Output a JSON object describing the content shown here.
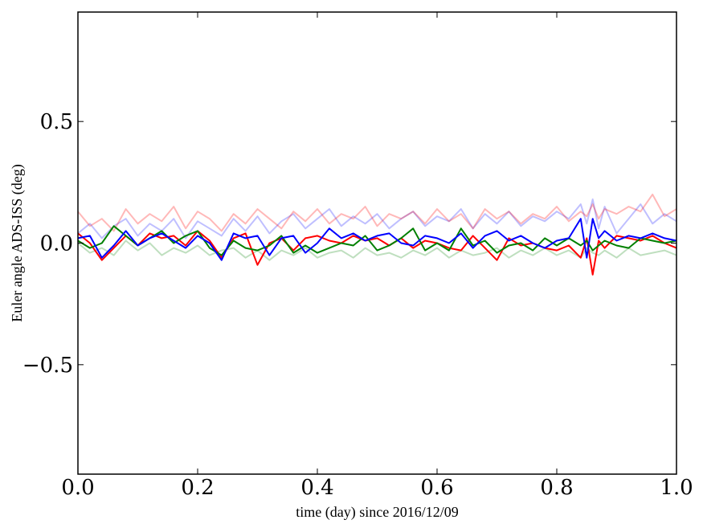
{
  "chart_data": {
    "type": "line",
    "title": "",
    "xlabel": "time (day) since 2016/12/09",
    "ylabel": "Euler angle ADS-ISS (deg)",
    "xlim": [
      0.0,
      1.0
    ],
    "ylim": [
      -0.95,
      0.95
    ],
    "xticks": [
      0.0,
      0.2,
      0.4,
      0.6,
      0.8,
      1.0
    ],
    "xtick_labels": [
      "0.0",
      "0.2",
      "0.4",
      "0.6",
      "0.8",
      "1.0"
    ],
    "yticks": [
      -0.5,
      0.0,
      0.5
    ],
    "ytick_labels": [
      "−0.5",
      "0.0",
      "0.5"
    ],
    "grid": false,
    "legend": "none",
    "x": [
      0.0,
      0.02,
      0.04,
      0.06,
      0.08,
      0.1,
      0.12,
      0.14,
      0.16,
      0.18,
      0.2,
      0.22,
      0.24,
      0.26,
      0.28,
      0.3,
      0.32,
      0.34,
      0.36,
      0.38,
      0.4,
      0.42,
      0.44,
      0.46,
      0.48,
      0.5,
      0.52,
      0.54,
      0.56,
      0.58,
      0.6,
      0.62,
      0.64,
      0.66,
      0.68,
      0.7,
      0.72,
      0.74,
      0.76,
      0.78,
      0.8,
      0.82,
      0.84,
      0.85,
      0.86,
      0.87,
      0.88,
      0.9,
      0.92,
      0.94,
      0.96,
      0.98,
      1.0
    ],
    "series": [
      {
        "color": "#ff0000",
        "opacity": 1.0,
        "values": [
          0.04,
          0.0,
          -0.07,
          -0.02,
          0.03,
          -0.01,
          0.04,
          0.02,
          0.03,
          -0.01,
          0.05,
          0.01,
          -0.06,
          0.02,
          0.04,
          -0.09,
          0.0,
          0.02,
          -0.03,
          0.02,
          0.03,
          0.01,
          0.0,
          0.03,
          0.01,
          0.02,
          -0.01,
          0.02,
          -0.02,
          0.01,
          0.0,
          -0.02,
          -0.03,
          0.03,
          -0.02,
          -0.07,
          0.02,
          -0.01,
          0.0,
          -0.02,
          -0.03,
          -0.01,
          -0.06,
          0.02,
          -0.13,
          0.01,
          -0.02,
          0.03,
          0.02,
          0.01,
          0.03,
          0.0,
          -0.02
        ]
      },
      {
        "color": "#008000",
        "opacity": 1.0,
        "values": [
          0.01,
          -0.02,
          0.0,
          0.07,
          0.03,
          -0.01,
          0.02,
          0.05,
          0.0,
          0.03,
          0.05,
          -0.02,
          -0.05,
          0.01,
          -0.02,
          -0.03,
          -0.01,
          0.03,
          -0.04,
          -0.01,
          -0.04,
          -0.02,
          0.0,
          -0.01,
          0.03,
          -0.03,
          -0.01,
          0.02,
          0.06,
          -0.03,
          0.0,
          -0.03,
          0.06,
          -0.01,
          0.01,
          -0.04,
          -0.01,
          0.0,
          -0.03,
          0.02,
          -0.01,
          0.02,
          -0.01,
          0.01,
          -0.03,
          -0.01,
          0.01,
          -0.01,
          -0.02,
          0.02,
          0.01,
          0.0,
          0.01
        ]
      },
      {
        "color": "#0000ff",
        "opacity": 1.0,
        "values": [
          0.02,
          0.03,
          -0.06,
          -0.01,
          0.05,
          -0.01,
          0.02,
          0.04,
          0.01,
          -0.02,
          0.03,
          0.0,
          -0.07,
          0.04,
          0.02,
          0.03,
          -0.05,
          0.02,
          0.03,
          -0.04,
          0.0,
          0.06,
          0.02,
          0.04,
          0.01,
          0.03,
          0.04,
          0.0,
          -0.01,
          0.03,
          0.02,
          0.0,
          0.04,
          -0.02,
          0.03,
          0.05,
          0.01,
          0.03,
          0.0,
          -0.02,
          0.01,
          0.02,
          0.1,
          -0.06,
          0.1,
          0.02,
          0.05,
          0.01,
          0.03,
          0.02,
          0.04,
          0.02,
          0.01
        ]
      },
      {
        "color": "#ff0000",
        "opacity": 0.28,
        "values": [
          0.13,
          0.07,
          0.1,
          0.05,
          0.14,
          0.08,
          0.12,
          0.09,
          0.15,
          0.06,
          0.13,
          0.1,
          0.05,
          0.12,
          0.08,
          0.14,
          0.1,
          0.06,
          0.13,
          0.09,
          0.14,
          0.08,
          0.12,
          0.1,
          0.15,
          0.07,
          0.12,
          0.1,
          0.13,
          0.08,
          0.14,
          0.09,
          0.12,
          0.06,
          0.14,
          0.1,
          0.13,
          0.08,
          0.12,
          0.1,
          0.15,
          0.09,
          0.13,
          0.11,
          0.16,
          0.1,
          0.14,
          0.12,
          0.15,
          0.13,
          0.2,
          0.11,
          0.14
        ]
      },
      {
        "color": "#008000",
        "opacity": 0.25,
        "values": [
          0.0,
          -0.04,
          -0.02,
          -0.05,
          0.01,
          -0.03,
          0.0,
          -0.05,
          -0.02,
          -0.04,
          -0.01,
          -0.05,
          -0.03,
          -0.02,
          -0.06,
          -0.03,
          -0.07,
          -0.03,
          -0.05,
          -0.02,
          -0.06,
          -0.04,
          -0.03,
          -0.06,
          -0.02,
          -0.05,
          -0.04,
          -0.06,
          -0.03,
          -0.05,
          -0.02,
          -0.06,
          -0.03,
          -0.05,
          -0.04,
          -0.02,
          -0.06,
          -0.03,
          -0.05,
          -0.02,
          -0.05,
          -0.03,
          -0.06,
          -0.02,
          -0.04,
          -0.05,
          -0.03,
          -0.06,
          -0.02,
          -0.05,
          -0.04,
          -0.03,
          -0.05
        ]
      },
      {
        "color": "#0000ff",
        "opacity": 0.25,
        "values": [
          0.04,
          0.08,
          0.02,
          0.07,
          0.1,
          0.03,
          0.08,
          0.05,
          0.1,
          0.02,
          0.09,
          0.06,
          0.03,
          0.1,
          0.05,
          0.11,
          0.04,
          0.09,
          0.12,
          0.06,
          0.1,
          0.14,
          0.07,
          0.11,
          0.08,
          0.12,
          0.06,
          0.1,
          0.13,
          0.07,
          0.11,
          0.09,
          0.14,
          0.06,
          0.12,
          0.08,
          0.13,
          0.07,
          0.11,
          0.09,
          0.13,
          0.1,
          0.16,
          0.08,
          0.18,
          0.06,
          0.15,
          0.04,
          0.1,
          0.16,
          0.08,
          0.12,
          0.09
        ]
      }
    ]
  }
}
